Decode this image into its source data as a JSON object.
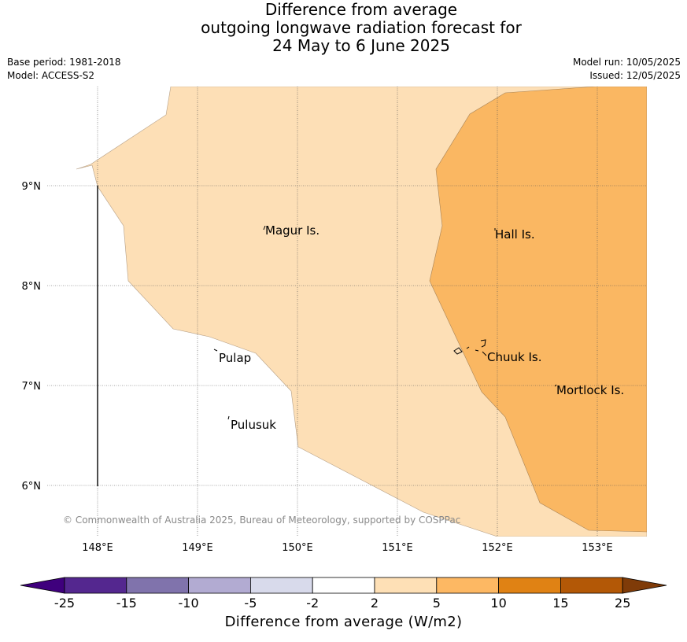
{
  "title": {
    "line1": "Difference from average",
    "line2": "outgoing longwave radiation forecast for",
    "line3": "24 May to 6 June 2025"
  },
  "meta_left": {
    "base_period": "Base period: 1981-2018",
    "model": "Model: ACCESS-S2"
  },
  "meta_right": {
    "model_run": "Model run: 10/05/2025",
    "issued": "Issued: 12/05/2025"
  },
  "map": {
    "longitude_labels": [
      "148°E",
      "149°E",
      "150°E",
      "151°E",
      "152°E",
      "153°E"
    ],
    "latitude_labels": [
      "9°N",
      "8°N",
      "7°N",
      "6°N"
    ],
    "places": [
      "Magur Is.",
      "Hall Is.",
      "Pulap",
      "Chuuk Is.",
      "Mortlock Is.",
      "Pulusuk"
    ],
    "copyright": "© Commonwealth of Australia 2025, Bureau of Meteorology, supported by COSPPac",
    "shaded_classes": [
      {
        "range": "2 to 5",
        "color": "#fde0b7"
      },
      {
        "range": "5 to 10",
        "color": "#fbb761"
      }
    ]
  },
  "colorbar": {
    "ticks": [
      "-25",
      "-15",
      "-10",
      "-5",
      "-2",
      "2",
      "5",
      "10",
      "15",
      "25"
    ],
    "colors": [
      "#3f007d",
      "#54278f",
      "#8073ac",
      "#b2abd2",
      "#d8daeb",
      "#ffffff",
      "#fee0b6",
      "#fdb863",
      "#e08214",
      "#b35806",
      "#7f3b08"
    ],
    "label": "Difference from average (W/m2)"
  }
}
